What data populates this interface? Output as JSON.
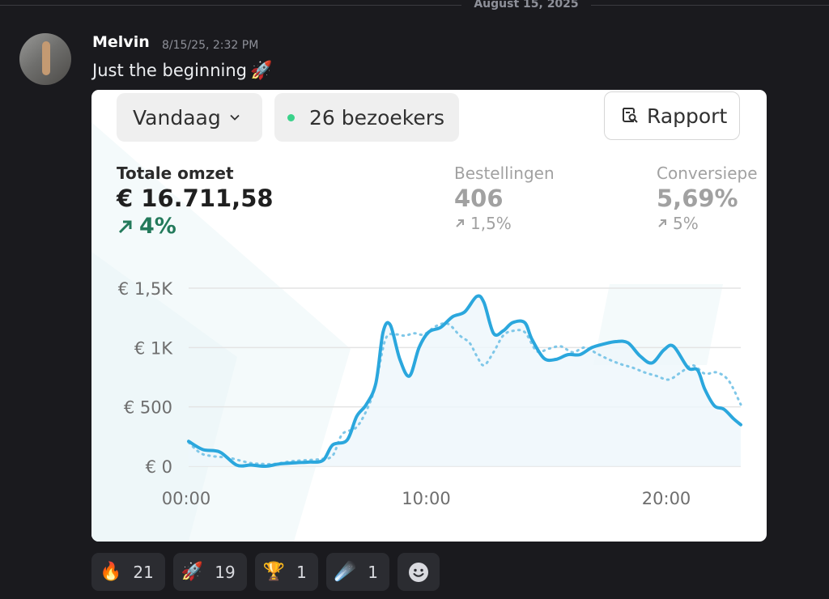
{
  "date_divider": "August 15, 2025",
  "message": {
    "author": "Melvin",
    "timestamp": "8/15/25, 2:32 PM",
    "text": "Just the beginning",
    "emoji": "🚀"
  },
  "card": {
    "date_range": "Vandaag",
    "visitors": "26 bezoekers",
    "visitor_dot_color": "#3ad28a",
    "report_button": "Rapport",
    "metrics": [
      {
        "label": "Totale omzet",
        "value": "€ 16.711,58",
        "change": "4%"
      },
      {
        "label": "Bestellingen",
        "value": "406",
        "change": "1,5%"
      },
      {
        "label": "Conversiepe",
        "value": "5,69%",
        "change": "5%"
      }
    ]
  },
  "chart_data": {
    "type": "line",
    "xlabel": "",
    "ylabel": "",
    "ylim": [
      0,
      1500
    ],
    "xlim": [
      0,
      23
    ],
    "x_ticks": [
      0,
      10,
      20
    ],
    "x_tick_labels": [
      "00:00",
      "10:00",
      "20:00"
    ],
    "y_ticks": [
      0,
      500,
      1000,
      1500
    ],
    "y_tick_labels": [
      "€ 0",
      "€ 500",
      "€ 1K",
      "€ 1,5K"
    ],
    "grid": true,
    "line_color": "#2ba7dd",
    "series": [
      {
        "style": "solid",
        "x": [
          0,
          0.6,
          1.3,
          2,
          2.6,
          3.2,
          3.8,
          4.5,
          5,
          5.6,
          6,
          6.6,
          7,
          7.4,
          7.8,
          8.1,
          8.4,
          8.8,
          9.2,
          9.6,
          10,
          10.5,
          11,
          11.5,
          12,
          12.3,
          12.7,
          13.1,
          13.5,
          14,
          14.3,
          14.8,
          15.3,
          15.8,
          16.3,
          16.8,
          17.3,
          17.8,
          18.3,
          18.8,
          19.3,
          19.8,
          20.2,
          20.8,
          21.2,
          21.5,
          21.9,
          22.3,
          22.7,
          23
        ],
        "y": [
          210,
          140,
          120,
          10,
          10,
          0,
          20,
          30,
          35,
          50,
          180,
          220,
          420,
          520,
          700,
          1130,
          1190,
          900,
          760,
          1000,
          1130,
          1170,
          1260,
          1300,
          1430,
          1380,
          1120,
          1140,
          1210,
          1210,
          1070,
          910,
          900,
          940,
          940,
          1000,
          1030,
          1050,
          1040,
          930,
          870,
          980,
          1010,
          830,
          810,
          650,
          510,
          480,
          400,
          350
        ]
      },
      {
        "style": "dotted",
        "x": [
          0,
          0.5,
          1,
          1.7,
          2.5,
          3,
          3.6,
          4.2,
          4.8,
          5.5,
          6,
          6.4,
          7,
          7.5,
          7.8,
          8.2,
          8.6,
          9,
          9.4,
          9.8,
          10.3,
          10.8,
          11.3,
          11.7,
          12,
          12.3,
          12.7,
          13.1,
          13.5,
          14,
          14.5,
          15,
          15.5,
          16,
          16.5,
          17,
          17.5,
          18,
          18.5,
          19,
          19.5,
          20,
          20.5,
          21,
          21.5,
          22,
          22.5,
          23
        ],
        "y": [
          200,
          110,
          85,
          70,
          30,
          20,
          20,
          40,
          50,
          60,
          90,
          270,
          330,
          510,
          700,
          1070,
          1110,
          1100,
          1120,
          1110,
          1180,
          1200,
          1100,
          1040,
          930,
          850,
          960,
          1100,
          1140,
          1130,
          970,
          990,
          1010,
          960,
          1000,
          950,
          900,
          860,
          830,
          790,
          760,
          730,
          790,
          850,
          780,
          790,
          720,
          520
        ]
      }
    ]
  },
  "reactions": [
    {
      "emoji": "🔥",
      "icon": "fire-emoji",
      "count": "21"
    },
    {
      "emoji": "🚀",
      "icon": "rocket-emoji",
      "count": "19"
    },
    {
      "emoji": "🏆",
      "icon": "trophy-emoji",
      "count": "1"
    },
    {
      "emoji": "☄️",
      "icon": "comet-emoji",
      "count": "1"
    }
  ],
  "add_reaction_icon": "smiley-add-reaction-icon"
}
